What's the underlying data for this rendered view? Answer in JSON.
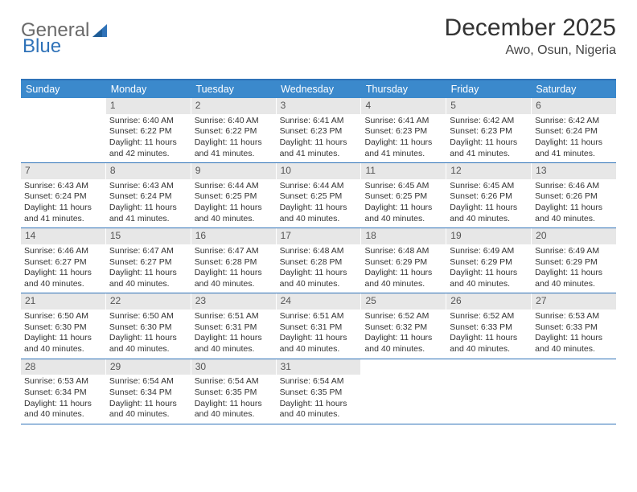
{
  "logo": {
    "text1": "General",
    "text2": "Blue"
  },
  "title": "December 2025",
  "location": "Awo, Osun, Nigeria",
  "colors": {
    "header_bg": "#3b89cc",
    "rule": "#2f72b8",
    "daynum_bg": "#e7e7e7",
    "text": "#333333"
  },
  "dow": [
    "Sunday",
    "Monday",
    "Tuesday",
    "Wednesday",
    "Thursday",
    "Friday",
    "Saturday"
  ],
  "weeks": [
    [
      {
        "n": "",
        "sr": "",
        "ss": "",
        "dl": ""
      },
      {
        "n": "1",
        "sr": "Sunrise: 6:40 AM",
        "ss": "Sunset: 6:22 PM",
        "dl": "Daylight: 11 hours and 42 minutes."
      },
      {
        "n": "2",
        "sr": "Sunrise: 6:40 AM",
        "ss": "Sunset: 6:22 PM",
        "dl": "Daylight: 11 hours and 41 minutes."
      },
      {
        "n": "3",
        "sr": "Sunrise: 6:41 AM",
        "ss": "Sunset: 6:23 PM",
        "dl": "Daylight: 11 hours and 41 minutes."
      },
      {
        "n": "4",
        "sr": "Sunrise: 6:41 AM",
        "ss": "Sunset: 6:23 PM",
        "dl": "Daylight: 11 hours and 41 minutes."
      },
      {
        "n": "5",
        "sr": "Sunrise: 6:42 AM",
        "ss": "Sunset: 6:23 PM",
        "dl": "Daylight: 11 hours and 41 minutes."
      },
      {
        "n": "6",
        "sr": "Sunrise: 6:42 AM",
        "ss": "Sunset: 6:24 PM",
        "dl": "Daylight: 11 hours and 41 minutes."
      }
    ],
    [
      {
        "n": "7",
        "sr": "Sunrise: 6:43 AM",
        "ss": "Sunset: 6:24 PM",
        "dl": "Daylight: 11 hours and 41 minutes."
      },
      {
        "n": "8",
        "sr": "Sunrise: 6:43 AM",
        "ss": "Sunset: 6:24 PM",
        "dl": "Daylight: 11 hours and 41 minutes."
      },
      {
        "n": "9",
        "sr": "Sunrise: 6:44 AM",
        "ss": "Sunset: 6:25 PM",
        "dl": "Daylight: 11 hours and 40 minutes."
      },
      {
        "n": "10",
        "sr": "Sunrise: 6:44 AM",
        "ss": "Sunset: 6:25 PM",
        "dl": "Daylight: 11 hours and 40 minutes."
      },
      {
        "n": "11",
        "sr": "Sunrise: 6:45 AM",
        "ss": "Sunset: 6:25 PM",
        "dl": "Daylight: 11 hours and 40 minutes."
      },
      {
        "n": "12",
        "sr": "Sunrise: 6:45 AM",
        "ss": "Sunset: 6:26 PM",
        "dl": "Daylight: 11 hours and 40 minutes."
      },
      {
        "n": "13",
        "sr": "Sunrise: 6:46 AM",
        "ss": "Sunset: 6:26 PM",
        "dl": "Daylight: 11 hours and 40 minutes."
      }
    ],
    [
      {
        "n": "14",
        "sr": "Sunrise: 6:46 AM",
        "ss": "Sunset: 6:27 PM",
        "dl": "Daylight: 11 hours and 40 minutes."
      },
      {
        "n": "15",
        "sr": "Sunrise: 6:47 AM",
        "ss": "Sunset: 6:27 PM",
        "dl": "Daylight: 11 hours and 40 minutes."
      },
      {
        "n": "16",
        "sr": "Sunrise: 6:47 AM",
        "ss": "Sunset: 6:28 PM",
        "dl": "Daylight: 11 hours and 40 minutes."
      },
      {
        "n": "17",
        "sr": "Sunrise: 6:48 AM",
        "ss": "Sunset: 6:28 PM",
        "dl": "Daylight: 11 hours and 40 minutes."
      },
      {
        "n": "18",
        "sr": "Sunrise: 6:48 AM",
        "ss": "Sunset: 6:29 PM",
        "dl": "Daylight: 11 hours and 40 minutes."
      },
      {
        "n": "19",
        "sr": "Sunrise: 6:49 AM",
        "ss": "Sunset: 6:29 PM",
        "dl": "Daylight: 11 hours and 40 minutes."
      },
      {
        "n": "20",
        "sr": "Sunrise: 6:49 AM",
        "ss": "Sunset: 6:29 PM",
        "dl": "Daylight: 11 hours and 40 minutes."
      }
    ],
    [
      {
        "n": "21",
        "sr": "Sunrise: 6:50 AM",
        "ss": "Sunset: 6:30 PM",
        "dl": "Daylight: 11 hours and 40 minutes."
      },
      {
        "n": "22",
        "sr": "Sunrise: 6:50 AM",
        "ss": "Sunset: 6:30 PM",
        "dl": "Daylight: 11 hours and 40 minutes."
      },
      {
        "n": "23",
        "sr": "Sunrise: 6:51 AM",
        "ss": "Sunset: 6:31 PM",
        "dl": "Daylight: 11 hours and 40 minutes."
      },
      {
        "n": "24",
        "sr": "Sunrise: 6:51 AM",
        "ss": "Sunset: 6:31 PM",
        "dl": "Daylight: 11 hours and 40 minutes."
      },
      {
        "n": "25",
        "sr": "Sunrise: 6:52 AM",
        "ss": "Sunset: 6:32 PM",
        "dl": "Daylight: 11 hours and 40 minutes."
      },
      {
        "n": "26",
        "sr": "Sunrise: 6:52 AM",
        "ss": "Sunset: 6:33 PM",
        "dl": "Daylight: 11 hours and 40 minutes."
      },
      {
        "n": "27",
        "sr": "Sunrise: 6:53 AM",
        "ss": "Sunset: 6:33 PM",
        "dl": "Daylight: 11 hours and 40 minutes."
      }
    ],
    [
      {
        "n": "28",
        "sr": "Sunrise: 6:53 AM",
        "ss": "Sunset: 6:34 PM",
        "dl": "Daylight: 11 hours and 40 minutes."
      },
      {
        "n": "29",
        "sr": "Sunrise: 6:54 AM",
        "ss": "Sunset: 6:34 PM",
        "dl": "Daylight: 11 hours and 40 minutes."
      },
      {
        "n": "30",
        "sr": "Sunrise: 6:54 AM",
        "ss": "Sunset: 6:35 PM",
        "dl": "Daylight: 11 hours and 40 minutes."
      },
      {
        "n": "31",
        "sr": "Sunrise: 6:54 AM",
        "ss": "Sunset: 6:35 PM",
        "dl": "Daylight: 11 hours and 40 minutes."
      },
      {
        "n": "",
        "sr": "",
        "ss": "",
        "dl": ""
      },
      {
        "n": "",
        "sr": "",
        "ss": "",
        "dl": ""
      },
      {
        "n": "",
        "sr": "",
        "ss": "",
        "dl": ""
      }
    ]
  ]
}
